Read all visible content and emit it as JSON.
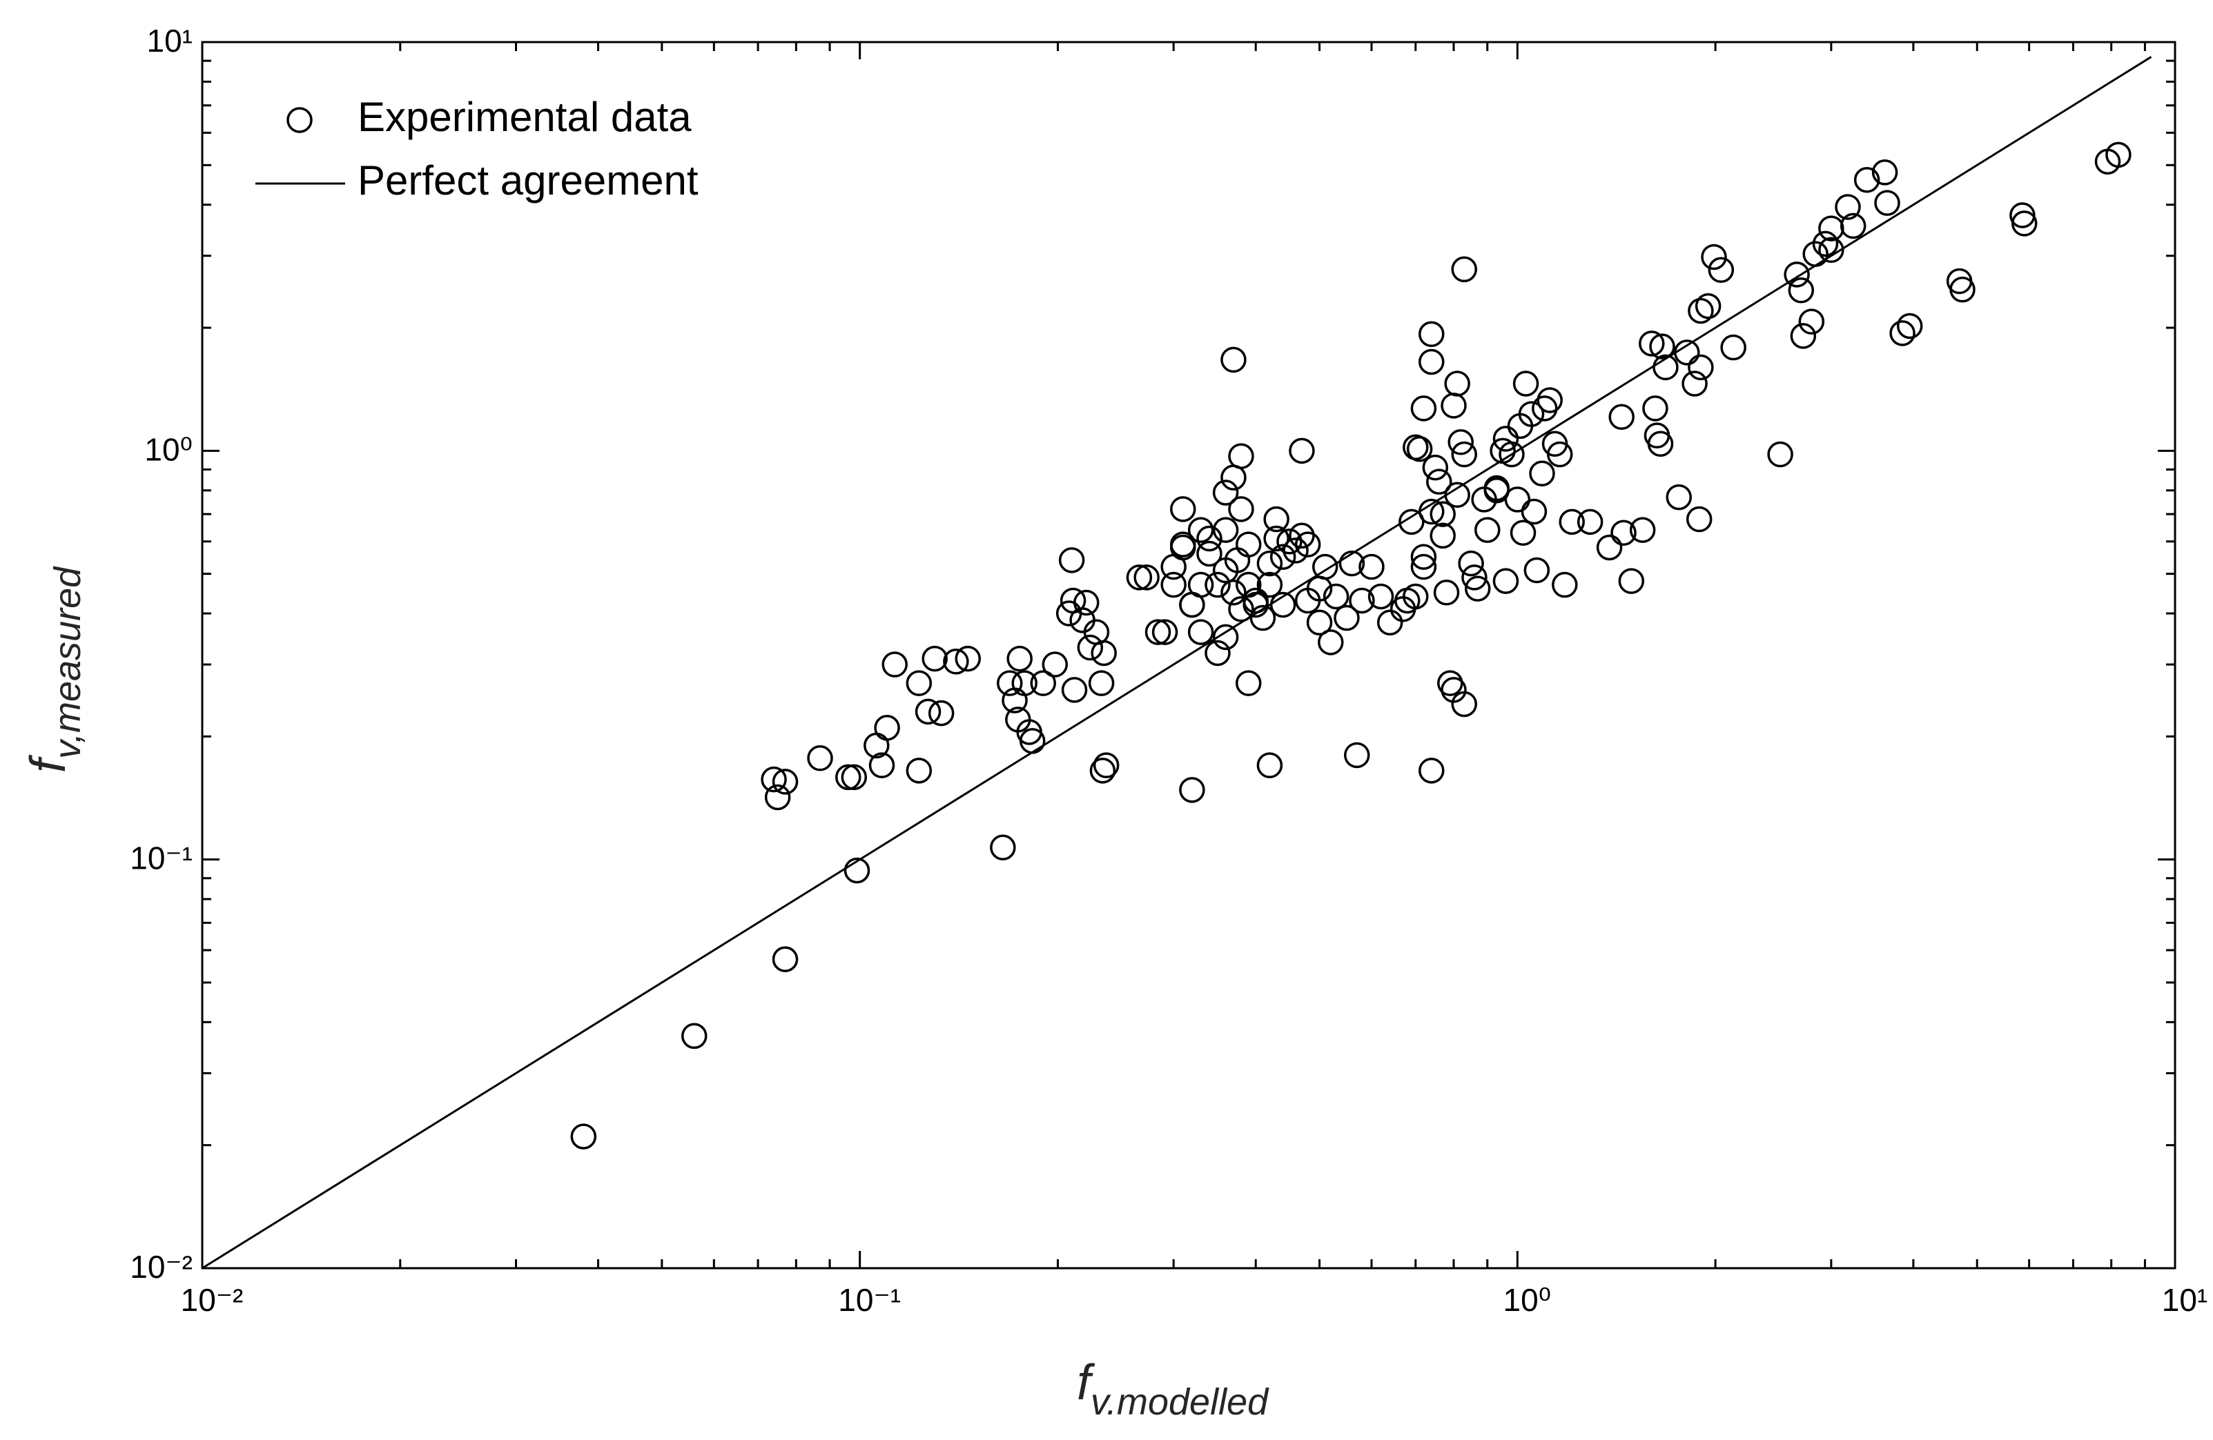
{
  "chart_data": {
    "type": "scatter",
    "x_label": {
      "text": "f",
      "subscript": "v.modelled"
    },
    "y_label": {
      "text": "f",
      "subscript": "v,measured"
    },
    "xscale": "log",
    "yscale": "log",
    "xlim": [
      0.01,
      10
    ],
    "ylim": [
      0.01,
      10
    ],
    "xticks": [
      {
        "value": 0.01,
        "label": "10⁻²"
      },
      {
        "value": 0.1,
        "label": "10⁻¹"
      },
      {
        "value": 1,
        "label": "10⁰"
      },
      {
        "value": 10,
        "label": "10¹"
      }
    ],
    "yticks": [
      {
        "value": 0.01,
        "label": "10⁻²"
      },
      {
        "value": 0.1,
        "label": "10⁻¹"
      },
      {
        "value": 1,
        "label": "10⁰"
      },
      {
        "value": 10,
        "label": "10¹"
      }
    ],
    "minor_ticks": true,
    "grid": false,
    "legend": "upper left",
    "series": [
      {
        "name": "Experimental data",
        "type": "scatter",
        "marker": "circle",
        "color": "#000000",
        "x": [
          0.038,
          0.056,
          0.077,
          0.099,
          0.165,
          0.074,
          0.075,
          0.077,
          0.087,
          0.096,
          0.098,
          0.106,
          0.108,
          0.11,
          0.113,
          0.123,
          0.123,
          0.127,
          0.13,
          0.133,
          0.14,
          0.146,
          0.169,
          0.172,
          0.174,
          0.175,
          0.178,
          0.181,
          0.183,
          0.19,
          0.198,
          0.208,
          0.21,
          0.212,
          0.211,
          0.218,
          0.221,
          0.224,
          0.229,
          0.234,
          0.237,
          0.233,
          0.235,
          0.266,
          0.273,
          0.284,
          0.291,
          0.3,
          0.3,
          0.31,
          0.31,
          0.32,
          0.32,
          0.32,
          0.31,
          0.33,
          0.33,
          0.33,
          0.34,
          0.34,
          0.35,
          0.35,
          0.36,
          0.36,
          0.36,
          0.36,
          0.37,
          0.37,
          0.37,
          0.375,
          0.38,
          0.38,
          0.38,
          0.39,
          0.39,
          0.39,
          0.4,
          0.4,
          0.41,
          0.42,
          0.42,
          0.42,
          0.43,
          0.43,
          0.44,
          0.44,
          0.45,
          0.46,
          0.47,
          0.47,
          0.48,
          0.48,
          0.5,
          0.5,
          0.51,
          0.52,
          0.53,
          0.55,
          0.56,
          0.57,
          0.58,
          0.6,
          0.62,
          0.64,
          0.67,
          0.68,
          0.69,
          0.7,
          0.7,
          0.71,
          0.72,
          0.72,
          0.72,
          0.74,
          0.74,
          0.74,
          0.74,
          0.75,
          0.76,
          0.77,
          0.77,
          0.78,
          0.79,
          0.8,
          0.81,
          0.82,
          0.83,
          0.8,
          0.83,
          0.83,
          0.85,
          0.86,
          0.87,
          0.89,
          0.93,
          0.81,
          0.96,
          0.9,
          0.93,
          0.95,
          0.96,
          0.98,
          1.0,
          1.01,
          1.02,
          1.03,
          1.05,
          1.06,
          1.07,
          1.09,
          1.1,
          1.12,
          1.14,
          1.16,
          1.18,
          1.21,
          1.29,
          1.38,
          1.44,
          1.45,
          1.49,
          1.55,
          1.6,
          1.62,
          1.63,
          1.65,
          1.66,
          1.68,
          1.76,
          1.81,
          1.86,
          1.89,
          1.9,
          1.95,
          1.99,
          2.04,
          2.13,
          1.9,
          2.51,
          2.66,
          2.7,
          2.72,
          2.8,
          2.84,
          2.94,
          3.0,
          3.0,
          3.18,
          3.24,
          3.4,
          3.62,
          3.65,
          3.85,
          3.95,
          4.7,
          4.75,
          5.86,
          5.9,
          7.9,
          8.2
        ],
        "values": [
          0.021,
          0.037,
          0.057,
          0.094,
          0.107,
          0.157,
          0.142,
          0.155,
          0.177,
          0.159,
          0.159,
          0.19,
          0.17,
          0.21,
          0.3,
          0.165,
          0.27,
          0.23,
          0.31,
          0.228,
          0.305,
          0.31,
          0.27,
          0.245,
          0.22,
          0.31,
          0.27,
          0.205,
          0.195,
          0.27,
          0.3,
          0.4,
          0.54,
          0.26,
          0.43,
          0.385,
          0.425,
          0.33,
          0.36,
          0.165,
          0.17,
          0.27,
          0.32,
          0.49,
          0.49,
          0.36,
          0.36,
          0.47,
          0.52,
          0.72,
          0.59,
          0.42,
          0.42,
          0.148,
          0.58,
          0.64,
          0.36,
          0.47,
          0.56,
          0.61,
          0.32,
          0.47,
          0.64,
          0.79,
          0.35,
          0.51,
          1.67,
          0.86,
          0.45,
          0.54,
          0.97,
          0.72,
          0.41,
          0.47,
          0.59,
          0.27,
          0.43,
          0.42,
          0.39,
          0.53,
          0.17,
          0.47,
          0.61,
          0.68,
          0.42,
          0.55,
          0.6,
          0.57,
          0.62,
          1.0,
          0.59,
          0.43,
          0.38,
          0.46,
          0.52,
          0.34,
          0.44,
          0.39,
          0.53,
          0.18,
          0.43,
          0.52,
          0.44,
          0.38,
          0.41,
          0.43,
          0.67,
          1.02,
          0.44,
          1.01,
          0.52,
          1.27,
          0.55,
          0.165,
          1.93,
          1.65,
          0.71,
          0.91,
          0.84,
          0.7,
          0.62,
          0.45,
          0.27,
          1.29,
          0.78,
          1.05,
          0.98,
          0.26,
          0.24,
          2.78,
          0.53,
          0.49,
          0.46,
          0.76,
          0.8,
          1.46,
          0.48,
          0.64,
          0.81,
          1.0,
          1.07,
          0.98,
          0.76,
          1.15,
          0.63,
          1.46,
          1.23,
          0.71,
          0.51,
          0.88,
          1.27,
          1.33,
          1.04,
          0.98,
          0.47,
          0.67,
          0.67,
          0.58,
          1.21,
          0.63,
          0.48,
          0.64,
          1.83,
          1.27,
          1.09,
          1.04,
          1.8,
          1.6,
          0.77,
          1.74,
          1.46,
          0.68,
          2.2,
          2.26,
          2.98,
          2.77,
          1.79,
          1.6,
          0.98,
          2.7,
          2.47,
          1.91,
          2.07,
          3.03,
          3.21,
          3.1,
          3.5,
          3.95,
          3.55,
          4.6,
          4.8,
          4.04,
          1.94,
          2.02,
          2.6,
          2.48,
          3.77,
          3.6,
          5.1,
          5.3
        ]
      },
      {
        "name": "Perfect agreement",
        "type": "line",
        "color": "#000000",
        "x": [
          0.01,
          9.2
        ],
        "values": [
          0.01,
          9.2
        ]
      }
    ]
  }
}
